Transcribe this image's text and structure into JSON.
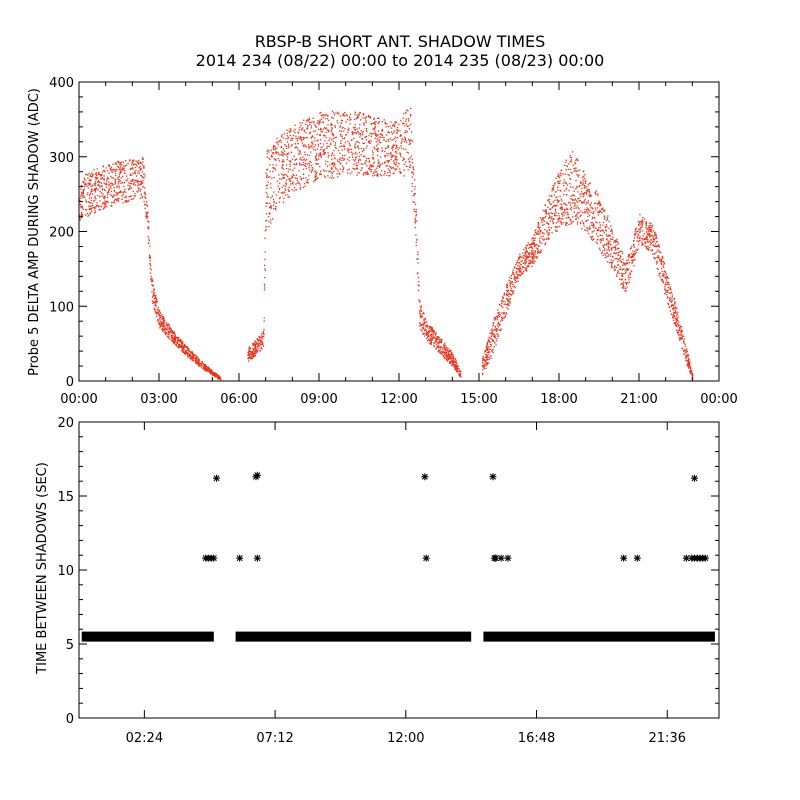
{
  "figure": {
    "title_line1": "RBSP-B SHORT ANT. SHADOW TIMES",
    "title_line2": "2014 234 (08/22) 00:00 to 2014 235 (08/23) 00:00"
  },
  "chart_data": [
    {
      "type": "scatter",
      "name": "delta-amp",
      "ylabel": "Probe 5 DELTA AMP DURING SHADOW (ADC)",
      "xlabel": "",
      "x_unit": "hours",
      "xlim": [
        0,
        24
      ],
      "ylim": [
        0,
        400
      ],
      "xticks": [
        0,
        3,
        6,
        9,
        12,
        15,
        18,
        21,
        24
      ],
      "xtick_labels": [
        "00:00",
        "03:00",
        "06:00",
        "09:00",
        "12:00",
        "15:00",
        "18:00",
        "21:00",
        "00:00"
      ],
      "yticks": [
        0,
        100,
        200,
        300,
        400
      ],
      "ytick_labels": [
        "0",
        "100",
        "200",
        "300",
        "400"
      ],
      "color": "#e8331c",
      "series": [
        {
          "name": "band-low",
          "x": [
            0.0,
            0.5,
            1.0,
            1.5,
            2.0,
            2.4,
            2.55,
            2.7,
            3.0,
            3.5,
            4.0,
            4.5,
            5.0,
            5.3
          ],
          "y": [
            215,
            225,
            232,
            238,
            242,
            245,
            200,
            110,
            72,
            52,
            35,
            20,
            8,
            2
          ]
        },
        {
          "name": "band-high",
          "x": [
            0.0,
            0.5,
            1.0,
            1.5,
            2.0,
            2.4,
            2.55,
            2.7,
            3.0,
            3.5,
            4.0,
            4.5,
            5.0,
            5.3
          ],
          "y": [
            272,
            284,
            290,
            296,
            298,
            300,
            240,
            140,
            95,
            68,
            48,
            30,
            14,
            6
          ]
        },
        {
          "name": "band-low",
          "x": [
            6.3,
            6.6,
            6.9,
            7.0,
            7.5,
            8.0,
            8.5,
            9.0,
            9.5,
            10.0,
            10.5,
            11.0,
            11.5,
            12.0,
            12.4,
            12.6,
            12.75,
            13.0,
            13.5,
            14.0,
            14.3
          ],
          "y": [
            25,
            35,
            45,
            200,
            235,
            250,
            262,
            270,
            272,
            275,
            275,
            275,
            275,
            275,
            275,
            200,
            70,
            55,
            38,
            20,
            5
          ]
        },
        {
          "name": "band-high",
          "x": [
            6.3,
            6.6,
            6.9,
            7.0,
            7.5,
            8.0,
            8.5,
            9.0,
            9.5,
            10.0,
            10.5,
            11.0,
            11.5,
            12.0,
            12.4,
            12.6,
            12.75,
            13.0,
            13.5,
            14.0,
            14.3
          ],
          "y": [
            45,
            55,
            68,
            310,
            330,
            342,
            352,
            360,
            362,
            362,
            360,
            355,
            350,
            348,
            375,
            260,
            110,
            82,
            60,
            38,
            14
          ]
        },
        {
          "name": "band-low",
          "x": [
            15.1,
            15.5,
            16.0,
            16.5,
            17.0,
            17.5,
            18.0,
            18.5,
            19.0,
            19.5,
            20.0,
            20.5,
            21.0,
            21.5,
            22.0,
            22.5,
            22.8,
            23.0
          ],
          "y": [
            8,
            35,
            90,
            140,
            155,
            185,
            205,
            210,
            200,
            175,
            150,
            115,
            185,
            170,
            110,
            55,
            20,
            2
          ]
        },
        {
          "name": "band-high",
          "x": [
            15.1,
            15.5,
            16.0,
            16.5,
            17.0,
            17.5,
            18.0,
            18.5,
            19.0,
            19.5,
            20.0,
            20.5,
            21.0,
            21.5,
            22.0,
            22.5,
            22.8,
            23.0
          ],
          "y": [
            30,
            80,
            130,
            170,
            195,
            240,
            285,
            310,
            275,
            250,
            205,
            160,
            225,
            210,
            150,
            85,
            40,
            8
          ]
        }
      ]
    },
    {
      "type": "scatter",
      "name": "time-between-shadows",
      "ylabel": "TIME BETWEEN SHADOWS (SEC)",
      "xlabel": "",
      "x_unit": "hours",
      "xlim": [
        0,
        23.5
      ],
      "ylim": [
        0,
        20
      ],
      "xticks": [
        2.4,
        7.2,
        12.0,
        16.8,
        21.6
      ],
      "xtick_labels": [
        "02:24",
        "07:12",
        "12:00",
        "16:48",
        "21:36"
      ],
      "yticks": [
        0,
        5,
        10,
        15,
        20
      ],
      "ytick_labels": [
        "0",
        "5",
        "10",
        "15",
        "20"
      ],
      "marker": "*",
      "series": [
        {
          "name": "baseline-runs",
          "value": 5.5,
          "segments": [
            [
              0.1,
              4.95
            ],
            [
              5.75,
              14.4
            ],
            [
              14.85,
              23.35
            ]
          ]
        },
        {
          "name": "baseline-markers",
          "x": [
            0.6,
            9.0,
            11.0,
            19.5
          ],
          "y": [
            5.5,
            5.5,
            5.5,
            5.5
          ]
        },
        {
          "name": "outliers",
          "x": [
            4.65,
            4.75,
            4.85,
            4.95,
            5.05,
            5.9,
            6.5,
            6.55,
            6.55,
            12.7,
            12.75,
            15.2,
            15.25,
            15.3,
            15.5,
            15.75,
            20.0,
            20.5,
            22.3,
            22.5,
            22.6,
            22.7,
            22.8,
            22.9,
            23.0,
            22.6
          ],
          "y": [
            10.8,
            10.8,
            10.8,
            10.8,
            16.2,
            10.8,
            16.3,
            16.4,
            10.8,
            16.3,
            10.8,
            16.3,
            10.8,
            10.8,
            10.8,
            10.8,
            10.8,
            10.8,
            10.8,
            10.8,
            10.8,
            10.8,
            10.8,
            10.8,
            10.8,
            16.2
          ]
        }
      ]
    }
  ]
}
